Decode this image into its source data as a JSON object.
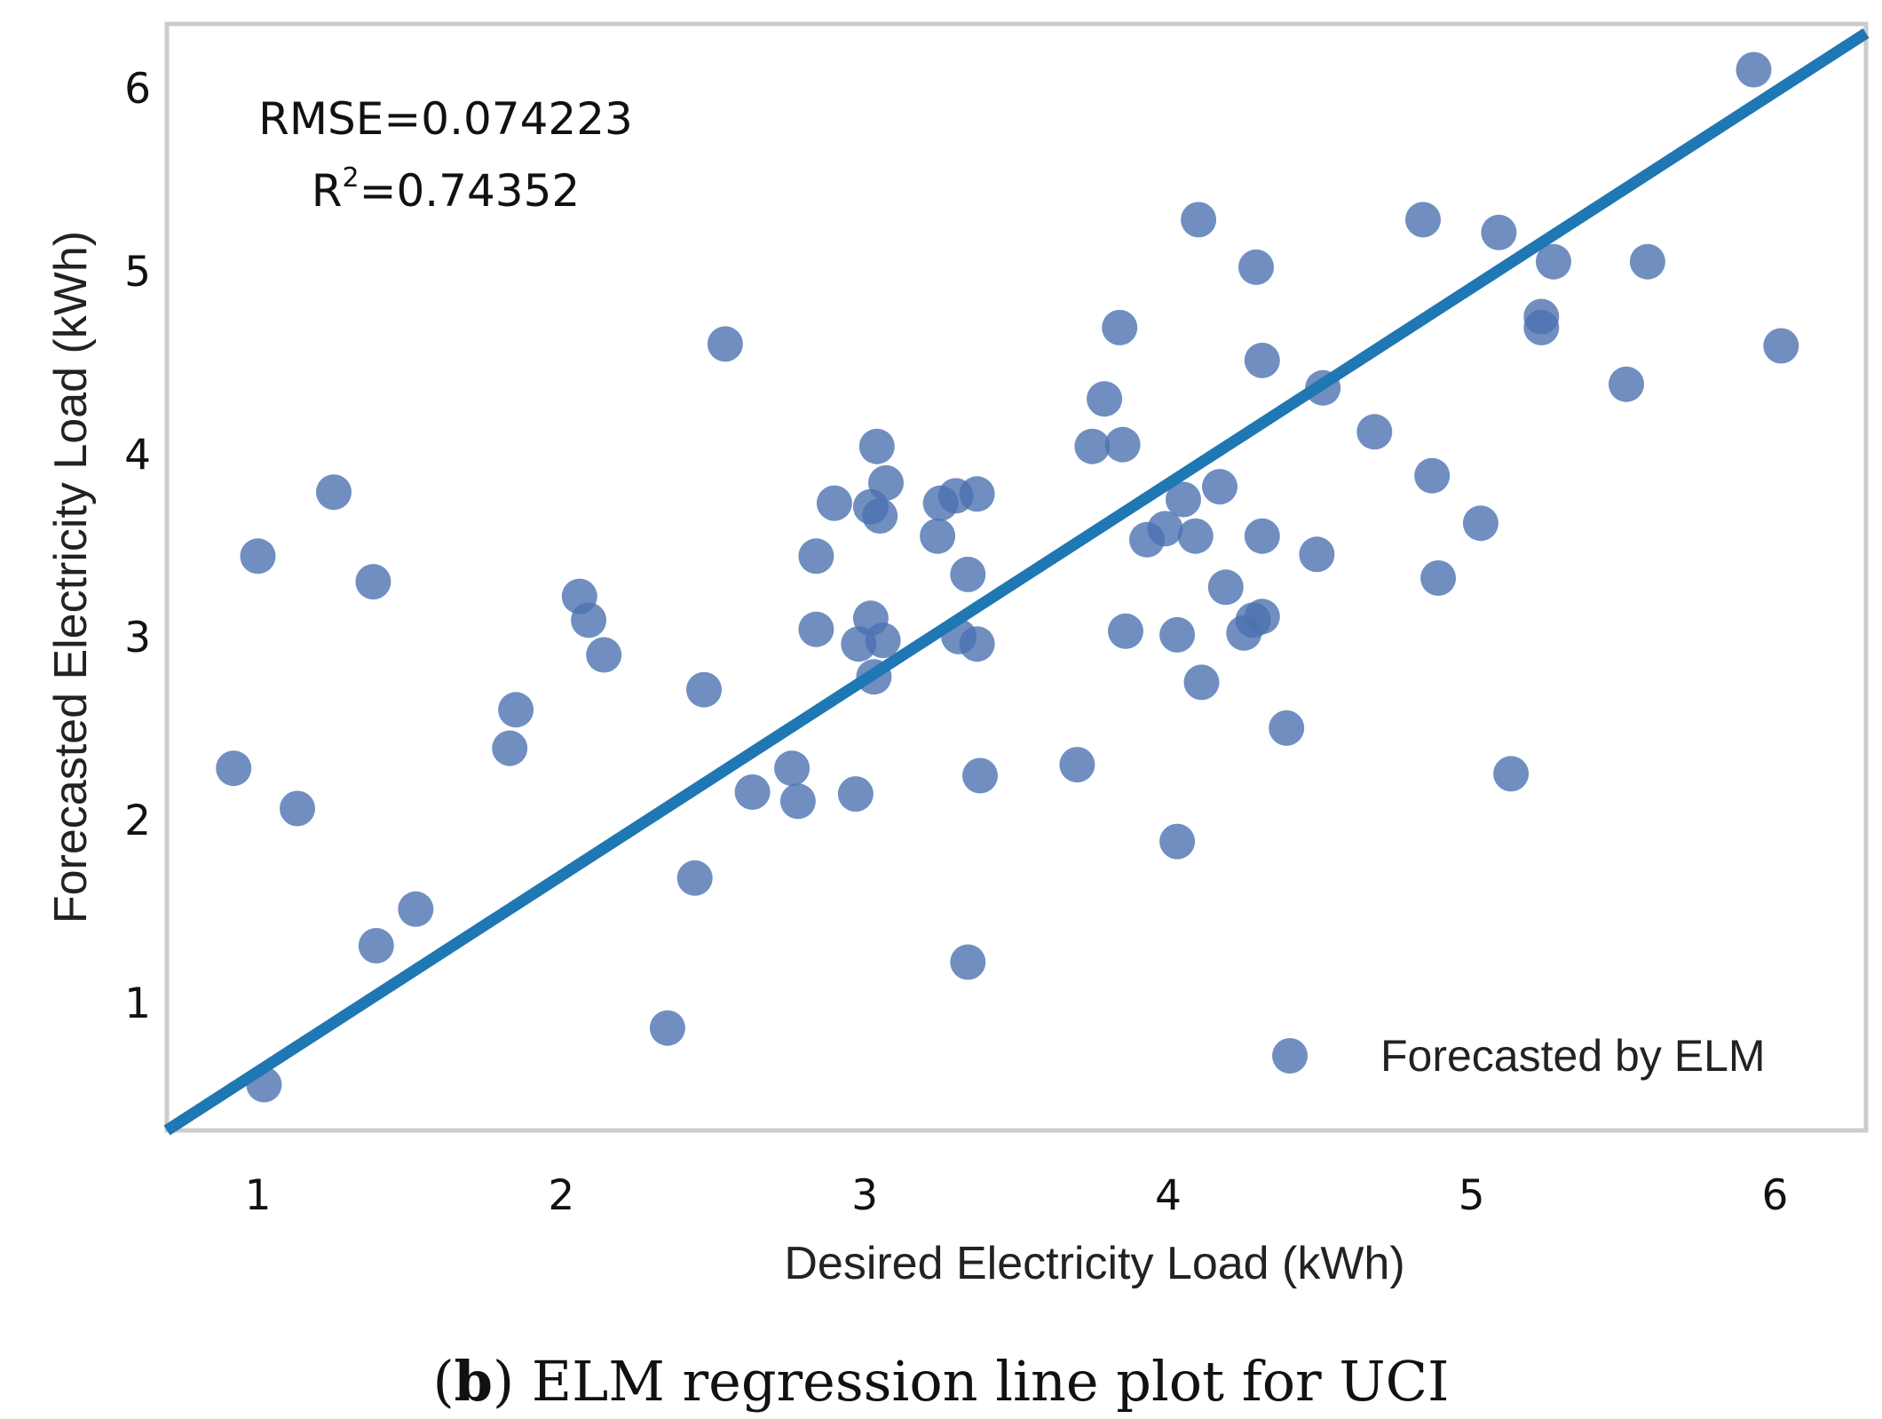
{
  "chart_data": {
    "type": "scatter",
    "xlabel": "Desired Electricity Load (kWh)",
    "ylabel": "Forecasted Electricity Load (kWh)",
    "xlim": [
      0.7,
      6.3
    ],
    "ylim": [
      0.3,
      6.35
    ],
    "xticks": [
      "1",
      "2",
      "3",
      "4",
      "5",
      "6"
    ],
    "yticks": [
      "1",
      "2",
      "3",
      "4",
      "5",
      "6"
    ],
    "grid": false,
    "annotations": {
      "rmse": "RMSE=0.074223",
      "r2_prefix": "R",
      "r2_sup": "2",
      "r2_value": "=0.74352"
    },
    "legend": {
      "label": "Forecasted by ELM",
      "position": "bottom-right"
    },
    "regression_line": {
      "x": [
        0.7,
        6.3
      ],
      "y": [
        0.3,
        6.3
      ]
    },
    "colors": {
      "points": "#4c72b0",
      "line": "#1f77b4",
      "frame": "#cccccc"
    },
    "series": [
      {
        "name": "Forecasted by ELM",
        "points": [
          [
            0.92,
            2.28
          ],
          [
            1.0,
            3.44
          ],
          [
            1.02,
            0.55
          ],
          [
            1.13,
            2.06
          ],
          [
            1.25,
            3.79
          ],
          [
            1.38,
            3.3
          ],
          [
            1.39,
            1.31
          ],
          [
            1.52,
            1.51
          ],
          [
            1.83,
            2.39
          ],
          [
            1.85,
            2.6
          ],
          [
            2.06,
            3.22
          ],
          [
            2.09,
            3.09
          ],
          [
            2.14,
            2.9
          ],
          [
            2.35,
            0.86
          ],
          [
            2.44,
            1.68
          ],
          [
            2.47,
            2.71
          ],
          [
            2.54,
            4.6
          ],
          [
            2.63,
            2.15
          ],
          [
            2.76,
            2.28
          ],
          [
            2.78,
            2.1
          ],
          [
            2.84,
            3.44
          ],
          [
            2.84,
            3.04
          ],
          [
            2.9,
            3.73
          ],
          [
            2.97,
            2.14
          ],
          [
            2.98,
            2.96
          ],
          [
            3.02,
            3.1
          ],
          [
            3.02,
            3.71
          ],
          [
            3.03,
            2.78
          ],
          [
            3.04,
            4.04
          ],
          [
            3.05,
            3.66
          ],
          [
            3.06,
            2.98
          ],
          [
            3.07,
            3.84
          ],
          [
            3.24,
            3.55
          ],
          [
            3.25,
            3.73
          ],
          [
            3.3,
            3.77
          ],
          [
            3.31,
            3.0
          ],
          [
            3.34,
            1.22
          ],
          [
            3.34,
            3.34
          ],
          [
            3.37,
            3.78
          ],
          [
            3.37,
            2.96
          ],
          [
            3.38,
            2.24
          ],
          [
            3.7,
            2.3
          ],
          [
            3.75,
            4.04
          ],
          [
            3.79,
            4.3
          ],
          [
            3.84,
            4.69
          ],
          [
            3.85,
            4.05
          ],
          [
            3.86,
            3.03
          ],
          [
            3.93,
            3.53
          ],
          [
            3.99,
            3.59
          ],
          [
            4.03,
            1.88
          ],
          [
            4.03,
            3.01
          ],
          [
            4.05,
            3.75
          ],
          [
            4.09,
            3.55
          ],
          [
            4.1,
            5.28
          ],
          [
            4.11,
            2.75
          ],
          [
            4.17,
            3.82
          ],
          [
            4.19,
            3.27
          ],
          [
            4.25,
            3.02
          ],
          [
            4.28,
            3.09
          ],
          [
            4.29,
            5.02
          ],
          [
            4.31,
            3.11
          ],
          [
            4.31,
            4.51
          ],
          [
            4.31,
            3.55
          ],
          [
            4.39,
            2.5
          ],
          [
            4.49,
            3.45
          ],
          [
            4.51,
            4.36
          ],
          [
            4.68,
            4.12
          ],
          [
            4.84,
            5.28
          ],
          [
            4.87,
            3.88
          ],
          [
            4.89,
            3.32
          ],
          [
            5.03,
            3.62
          ],
          [
            5.09,
            5.21
          ],
          [
            5.13,
            2.25
          ],
          [
            5.23,
            4.75
          ],
          [
            5.23,
            4.69
          ],
          [
            5.27,
            5.05
          ],
          [
            5.51,
            4.38
          ],
          [
            5.58,
            5.05
          ],
          [
            5.93,
            6.1
          ],
          [
            6.02,
            4.59
          ]
        ]
      }
    ],
    "caption": {
      "open": "(",
      "letter": "b",
      "rest": ") ELM regression line plot for UCI"
    }
  }
}
